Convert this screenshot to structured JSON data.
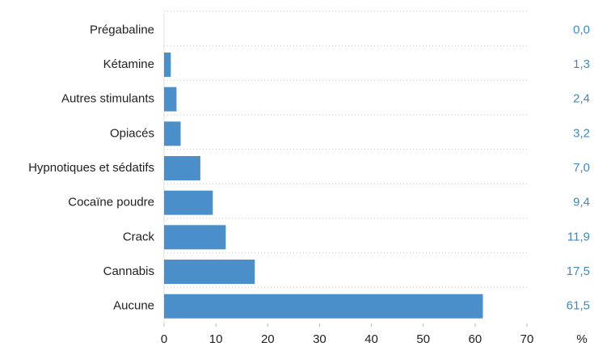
{
  "chart_data": {
    "type": "barh",
    "categories": [
      "Prégabaline",
      "Kétamine",
      "Autres stimulants",
      "Opiacés",
      "Hypnotiques et sédatifs",
      "Cocaïne poudre",
      "Crack",
      "Cannabis",
      "Aucune"
    ],
    "values": [
      0.0,
      1.3,
      2.4,
      3.2,
      7.0,
      9.4,
      11.9,
      17.5,
      61.5
    ],
    "value_labels": [
      "0,0",
      "1,3",
      "2,4",
      "3,2",
      "7,0",
      "9,4",
      "11,9",
      "17,5",
      "61,5"
    ],
    "color": "#4a8fca",
    "xlabel": "%",
    "xlim": [
      0,
      70
    ],
    "xticks": [
      0,
      10,
      20,
      30,
      40,
      50,
      60,
      70
    ]
  }
}
